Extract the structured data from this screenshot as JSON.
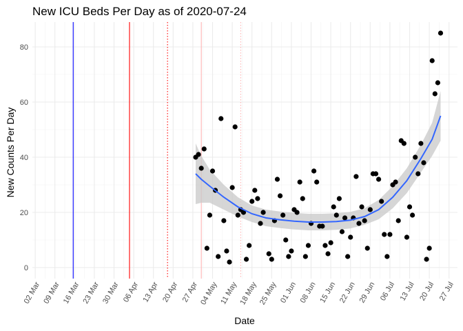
{
  "chart_data": {
    "type": "scatter",
    "title": "New ICU Beds Per Day as of 2020-07-24",
    "xlabel": "Date",
    "ylabel": "New Counts Per Day",
    "ylim": [
      -4,
      89
    ],
    "y_ticks": [
      0,
      20,
      40,
      60,
      80
    ],
    "x_start_day": 0,
    "x_end_day": 151,
    "x_ticks": [
      {
        "label": "02 Mar",
        "day": 1
      },
      {
        "label": "09 Mar",
        "day": 8
      },
      {
        "label": "16 Mar",
        "day": 15
      },
      {
        "label": "23 Mar",
        "day": 22
      },
      {
        "label": "30 Mar",
        "day": 29
      },
      {
        "label": "06 Apr",
        "day": 36
      },
      {
        "label": "13 Apr",
        "day": 43
      },
      {
        "label": "20 Apr",
        "day": 50
      },
      {
        "label": "27 Apr",
        "day": 57
      },
      {
        "label": "04 May",
        "day": 64
      },
      {
        "label": "11 May",
        "day": 71
      },
      {
        "label": "18 May",
        "day": 78
      },
      {
        "label": "25 May",
        "day": 85
      },
      {
        "label": "01 Jun",
        "day": 92
      },
      {
        "label": "08 Jun",
        "day": 99
      },
      {
        "label": "15 Jun",
        "day": 106
      },
      {
        "label": "22 Jun",
        "day": 113
      },
      {
        "label": "29 Jun",
        "day": 120
      },
      {
        "label": "06 Jul",
        "day": 127
      },
      {
        "label": "13 Jul",
        "day": 134
      },
      {
        "label": "20 Jul",
        "day": 141
      },
      {
        "label": "27 Jul",
        "day": 148
      }
    ],
    "vlines": [
      {
        "day": 14.5,
        "color": "#0000ff",
        "style": "solid"
      },
      {
        "day": 34.5,
        "color": "#ff0000",
        "style": "solid"
      },
      {
        "day": 48,
        "color": "#ff0000",
        "style": "dotted"
      },
      {
        "day": 60,
        "color": "#ffb3b3",
        "style": "solid"
      },
      {
        "day": 74,
        "color": "#ffb3b3",
        "style": "dotted"
      }
    ],
    "series": [
      {
        "name": "New ICU Beds",
        "color": "#000000",
        "points": [
          [
            58,
            40
          ],
          [
            59,
            41
          ],
          [
            60,
            36
          ],
          [
            61,
            43
          ],
          [
            62,
            7
          ],
          [
            63,
            19
          ],
          [
            64,
            35
          ],
          [
            65,
            28
          ],
          [
            66,
            4
          ],
          [
            67,
            54
          ],
          [
            68,
            17
          ],
          [
            69,
            6
          ],
          [
            70,
            2
          ],
          [
            71,
            29
          ],
          [
            72,
            51
          ],
          [
            73,
            19
          ],
          [
            74,
            21
          ],
          [
            75,
            20
          ],
          [
            76,
            3
          ],
          [
            77,
            8
          ],
          [
            78,
            24
          ],
          [
            79,
            28
          ],
          [
            80,
            25
          ],
          [
            81,
            16
          ],
          [
            82,
            20
          ],
          [
            84,
            5
          ],
          [
            85,
            3
          ],
          [
            86,
            17
          ],
          [
            87,
            32
          ],
          [
            88,
            26
          ],
          [
            89,
            19
          ],
          [
            90,
            10
          ],
          [
            91,
            4
          ],
          [
            92,
            6
          ],
          [
            93,
            21
          ],
          [
            94,
            20
          ],
          [
            95,
            31
          ],
          [
            96,
            25
          ],
          [
            97,
            4
          ],
          [
            98,
            8
          ],
          [
            99,
            16
          ],
          [
            100,
            35
          ],
          [
            101,
            31
          ],
          [
            102,
            15
          ],
          [
            103,
            15
          ],
          [
            104,
            8
          ],
          [
            105,
            5
          ],
          [
            106,
            9
          ],
          [
            107,
            22
          ],
          [
            108,
            19
          ],
          [
            109,
            25
          ],
          [
            110,
            13
          ],
          [
            111,
            18
          ],
          [
            112,
            4
          ],
          [
            113,
            11
          ],
          [
            114,
            18
          ],
          [
            115,
            33
          ],
          [
            116,
            16
          ],
          [
            117,
            22
          ],
          [
            118,
            17
          ],
          [
            119,
            7
          ],
          [
            120,
            21
          ],
          [
            121,
            34
          ],
          [
            122,
            34
          ],
          [
            123,
            32
          ],
          [
            124,
            24
          ],
          [
            125,
            12
          ],
          [
            126,
            4
          ],
          [
            127,
            12
          ],
          [
            128,
            30
          ],
          [
            129,
            31
          ],
          [
            130,
            17
          ],
          [
            131,
            46
          ],
          [
            132,
            45
          ],
          [
            133,
            11
          ],
          [
            134,
            22
          ],
          [
            135,
            19
          ],
          [
            136,
            40
          ],
          [
            137,
            34
          ],
          [
            138,
            45
          ],
          [
            139,
            38
          ],
          [
            140,
            3
          ],
          [
            141,
            7
          ],
          [
            142,
            75
          ],
          [
            143,
            63
          ],
          [
            144,
            67
          ],
          [
            145,
            85
          ]
        ]
      }
    ],
    "smooth": {
      "name": "loess fit",
      "color": "#3366ff",
      "band_color": "#c8c8c8",
      "points": [
        {
          "day": 58,
          "y": 34,
          "lo": 23,
          "hi": 45
        },
        {
          "day": 60,
          "y": 32,
          "lo": 23.5,
          "hi": 40.5
        },
        {
          "day": 63,
          "y": 29.5,
          "lo": 23.5,
          "hi": 35.5
        },
        {
          "day": 68,
          "y": 25.5,
          "lo": 21,
          "hi": 30
        },
        {
          "day": 73,
          "y": 22,
          "lo": 18.5,
          "hi": 25.5
        },
        {
          "day": 78,
          "y": 19.5,
          "lo": 16.5,
          "hi": 22.5
        },
        {
          "day": 83,
          "y": 18,
          "lo": 15,
          "hi": 21
        },
        {
          "day": 88,
          "y": 17.3,
          "lo": 14.3,
          "hi": 20.3
        },
        {
          "day": 93,
          "y": 16.8,
          "lo": 13.8,
          "hi": 19.8
        },
        {
          "day": 98,
          "y": 16.5,
          "lo": 13.5,
          "hi": 19.5
        },
        {
          "day": 103,
          "y": 16.5,
          "lo": 13.5,
          "hi": 19.5
        },
        {
          "day": 108,
          "y": 16.7,
          "lo": 13.7,
          "hi": 19.7
        },
        {
          "day": 113,
          "y": 17.2,
          "lo": 14.2,
          "hi": 20.2
        },
        {
          "day": 118,
          "y": 18.5,
          "lo": 15.5,
          "hi": 21.5
        },
        {
          "day": 123,
          "y": 21,
          "lo": 17.5,
          "hi": 24.5
        },
        {
          "day": 128,
          "y": 25.5,
          "lo": 21.5,
          "hi": 29.5
        },
        {
          "day": 133,
          "y": 31.5,
          "lo": 27,
          "hi": 36
        },
        {
          "day": 138,
          "y": 39.5,
          "lo": 34.5,
          "hi": 44.5
        },
        {
          "day": 142,
          "y": 46.5,
          "lo": 40.5,
          "hi": 52.5
        },
        {
          "day": 145,
          "y": 55,
          "lo": 46,
          "hi": 64
        }
      ]
    }
  }
}
